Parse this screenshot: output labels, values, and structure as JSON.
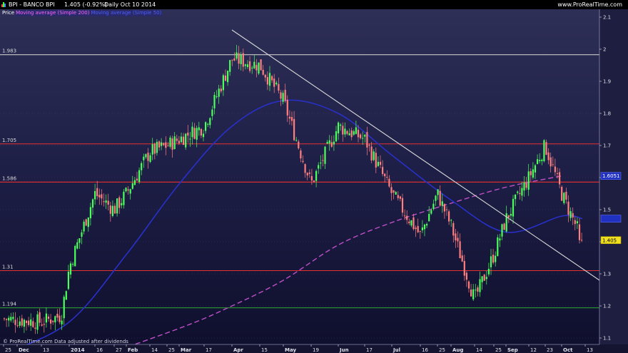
{
  "header": {
    "symbol": "BPI - BANCO BPI",
    "quote": "1.405 (-0.92%)",
    "period": "Daily  Oct 10 2014",
    "website": "www.ProRealTime.com"
  },
  "legend": {
    "price": "Price",
    "sma200": "Moving average (Simple 200)",
    "sma50": "Moving average (Simple 50)"
  },
  "watermark": "© ProRealTime.com  Data adjusted after dividends",
  "colors": {
    "up": "#4cff5c",
    "down": "#ff7f7f",
    "sma50": "#2830c8",
    "sma200": "#c050c8",
    "resistance": "#e83030",
    "support": "#30c030",
    "trendline": "#d8d8d8"
  },
  "chart_data": {
    "type": "candlestick",
    "ylim": [
      1.1,
      2.12
    ],
    "y_ticks": [
      "1.1",
      "1.2",
      "1.3",
      "1.4",
      "1.5",
      "1.6",
      "1.7",
      "1.8",
      "1.9",
      "2",
      "2.1"
    ],
    "x_ticks": [
      "25",
      "Dec",
      "13",
      "2014",
      "16",
      "27",
      "Feb",
      "14",
      "25",
      "Mar",
      "17",
      "Apr",
      "15",
      "May",
      "19",
      "Jun",
      "17",
      "Jul",
      "16",
      "25",
      "Aug",
      "14",
      "25",
      "Sep",
      "12",
      "23",
      "Oct",
      "13"
    ],
    "horizontal_lines": [
      {
        "label": "1.983",
        "value": 1.983,
        "color": "white"
      },
      {
        "label": "1.705",
        "value": 1.705,
        "color": "red"
      },
      {
        "label": "1.586",
        "value": 1.586,
        "color": "red"
      },
      {
        "label": "1.31",
        "value": 1.31,
        "color": "red"
      },
      {
        "label": "1.194",
        "value": 1.194,
        "color": "green"
      }
    ],
    "price_markers": [
      {
        "label": "1.6051",
        "value": 1.6051,
        "style": "blue"
      },
      {
        "label": "",
        "value": 1.472,
        "style": "blue"
      },
      {
        "label": "1.405",
        "value": 1.405,
        "style": "yellow"
      }
    ],
    "trendline": [
      {
        "x": "Apr",
        "y": 2.06
      },
      {
        "x": "Oct 13",
        "y": 1.28
      }
    ],
    "keypoints": [
      {
        "x": "Nov 25",
        "close": 1.16
      },
      {
        "x": "Dec 13",
        "close": 1.15
      },
      {
        "x": "Dec 27",
        "close": 1.17
      },
      {
        "x": "2014",
        "close": 1.32
      },
      {
        "x": "Jan 16",
        "close": 1.55
      },
      {
        "x": "Jan 27",
        "close": 1.5
      },
      {
        "x": "Feb",
        "close": 1.55
      },
      {
        "x": "Feb 14",
        "close": 1.68
      },
      {
        "x": "Feb 25",
        "close": 1.7
      },
      {
        "x": "Mar",
        "close": 1.72
      },
      {
        "x": "Mar 17",
        "close": 1.76
      },
      {
        "x": "Apr",
        "close": 1.97
      },
      {
        "x": "Apr 15",
        "close": 1.95
      },
      {
        "x": "May",
        "close": 1.84
      },
      {
        "x": "May 19",
        "close": 1.58
      },
      {
        "x": "Jun",
        "close": 1.76
      },
      {
        "x": "Jun 17",
        "close": 1.72
      },
      {
        "x": "Jul",
        "close": 1.55
      },
      {
        "x": "Jul 16",
        "close": 1.42
      },
      {
        "x": "Jul 25",
        "close": 1.55
      },
      {
        "x": "Aug",
        "close": 1.45
      },
      {
        "x": "Aug 14",
        "close": 1.22
      },
      {
        "x": "Aug 25",
        "close": 1.36
      },
      {
        "x": "Sep",
        "close": 1.47
      },
      {
        "x": "Sep 12",
        "close": 1.6
      },
      {
        "x": "Sep 23",
        "close": 1.7
      },
      {
        "x": "Oct",
        "close": 1.55
      },
      {
        "x": "Oct 10",
        "close": 1.405
      }
    ],
    "sma50_points": [
      {
        "x": "Nov 25",
        "y": 1.05
      },
      {
        "x": "2014",
        "y": 1.15
      },
      {
        "x": "Feb",
        "y": 1.36
      },
      {
        "x": "Mar",
        "y": 1.58
      },
      {
        "x": "Apr",
        "y": 1.76
      },
      {
        "x": "May",
        "y": 1.84
      },
      {
        "x": "Jun",
        "y": 1.8
      },
      {
        "x": "Jul",
        "y": 1.67
      },
      {
        "x": "Aug",
        "y": 1.53
      },
      {
        "x": "Sep",
        "y": 1.43
      },
      {
        "x": "Oct",
        "y": 1.48
      },
      {
        "x": "Oct 10",
        "y": 1.472
      }
    ],
    "sma200_points": [
      {
        "x": "Dec 27",
        "y": 1.0
      },
      {
        "x": "Mar",
        "y": 1.13
      },
      {
        "x": "Apr",
        "y": 1.2
      },
      {
        "x": "May",
        "y": 1.28
      },
      {
        "x": "Jun",
        "y": 1.39
      },
      {
        "x": "Jul",
        "y": 1.46
      },
      {
        "x": "Aug",
        "y": 1.52
      },
      {
        "x": "Sep",
        "y": 1.57
      },
      {
        "x": "Oct",
        "y": 1.6051
      }
    ]
  }
}
